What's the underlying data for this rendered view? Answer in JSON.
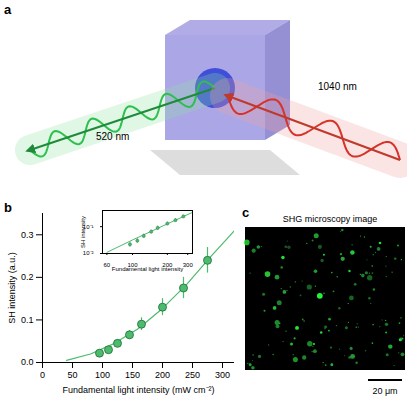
{
  "panel_a": {
    "label": "a",
    "fundamental_label": "1040 nm",
    "harmonic_label": "520 nm"
  },
  "chart_data": {
    "panel_label": "b",
    "type": "scatter",
    "x_label": "Fundamental light intensity (mW cm⁻²)",
    "y_label": "SH intensity (a.u.)",
    "x": [
      95,
      110,
      125,
      145,
      165,
      200,
      235,
      275
    ],
    "values": [
      0.022,
      0.03,
      0.045,
      0.065,
      0.09,
      0.13,
      0.175,
      0.24
    ],
    "errors": [
      0.005,
      0.006,
      0.008,
      0.01,
      0.015,
      0.02,
      0.025,
      0.03
    ],
    "color": "#4cbb6c",
    "marker": "circle",
    "fit": {
      "x": [
        40,
        80,
        120,
        160,
        200,
        240,
        280,
        320
      ],
      "values": [
        0.005,
        0.02,
        0.045,
        0.08,
        0.127,
        0.183,
        0.248,
        0.31
      ]
    },
    "xlim": [
      0,
      320
    ],
    "ylim": [
      0,
      0.35
    ],
    "xticks": [
      0,
      50,
      100,
      150,
      200,
      250,
      300
    ],
    "yticks": [
      {
        "value": 0,
        "label": "0.0"
      },
      {
        "value": 0.1,
        "label": "0.1"
      },
      {
        "value": 0.2,
        "label": "0.2"
      },
      {
        "value": 0.3,
        "label": "0.3"
      }
    ],
    "inset": {
      "type": "scatter",
      "log": true,
      "x_label": "Fundamental light intensity",
      "y_label": "SH intensity",
      "x": [
        95,
        110,
        125,
        145,
        165,
        200,
        235,
        275
      ],
      "values": [
        0.022,
        0.03,
        0.045,
        0.065,
        0.09,
        0.13,
        0.175,
        0.24
      ],
      "errors": [
        0.005,
        0.006,
        0.008,
        0.01,
        0.015,
        0.02,
        0.025,
        0.03
      ],
      "fit": {
        "x": [
          60,
          100,
          200,
          330
        ],
        "values": [
          0.011,
          0.032,
          0.127,
          0.34
        ]
      },
      "xlim": [
        55,
        330
      ],
      "ylim": [
        0.01,
        0.4
      ],
      "xticks": [
        60,
        100,
        200,
        300
      ],
      "yticks": [
        {
          "value": 0.01,
          "label": "10⁻²"
        },
        {
          "value": 0.1,
          "label": "10⁻¹"
        }
      ]
    }
  },
  "panel_c": {
    "label": "c",
    "title": "SHG microscopy image",
    "scale_bar": "20 μm"
  }
}
